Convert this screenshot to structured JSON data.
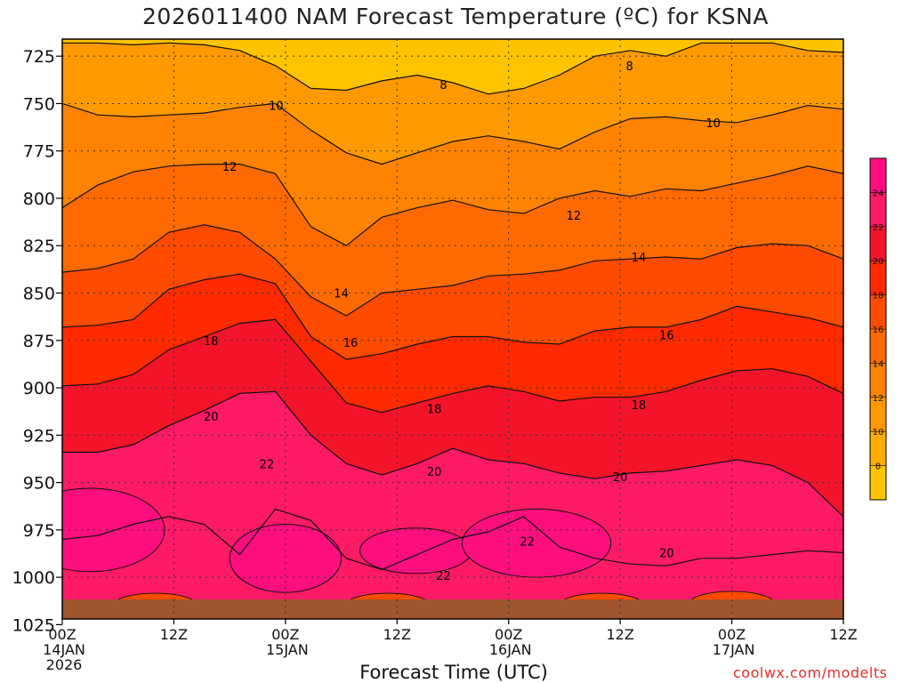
{
  "title": "2026011400 NAM Forecast Temperature (ºC) for KSNA",
  "xaxis_label": "Forecast Time (UTC)",
  "credit": "coolwx.com/modelts",
  "colors": {
    "fills": [
      "#ffc400",
      "#ffae00",
      "#ff9900",
      "#ff8200",
      "#ff6a00",
      "#ff4b00",
      "#ff2a00",
      "#f4142a",
      "#ff1a66",
      "#ff0e7e"
    ],
    "ground": "#a0552f",
    "contour": "#111111",
    "grid": "#333333"
  },
  "chart_data": {
    "type": "heatmap",
    "title": "2026011400 NAM Forecast Temperature (ºC) for KSNA",
    "xlabel": "Forecast Time (UTC)",
    "ylabel": "",
    "x_ticks": [
      {
        "hours": 0,
        "lines": [
          "00Z",
          "14JAN",
          "2026"
        ]
      },
      {
        "hours": 12,
        "lines": [
          "12Z"
        ]
      },
      {
        "hours": 24,
        "lines": [
          "00Z",
          "15JAN"
        ]
      },
      {
        "hours": 36,
        "lines": [
          "12Z"
        ]
      },
      {
        "hours": 48,
        "lines": [
          "00Z",
          "16JAN"
        ]
      },
      {
        "hours": 60,
        "lines": [
          "12Z"
        ]
      },
      {
        "hours": 72,
        "lines": [
          "00Z",
          "17JAN"
        ]
      },
      {
        "hours": 84,
        "lines": [
          "12Z"
        ]
      }
    ],
    "x_range_hours": [
      0,
      84
    ],
    "y_ticks": [
      "725",
      "750",
      "775",
      "800",
      "825",
      "850",
      "875",
      "900",
      "925",
      "950",
      "975",
      "1000",
      "1025"
    ],
    "y_range_hPa": [
      716,
      1022
    ],
    "y_inverted": true,
    "grid": true,
    "colorbar_levels": [
      "8",
      "10",
      "12",
      "14",
      "16",
      "18",
      "20",
      "22",
      "24"
    ],
    "colorbar_position": "right",
    "isotherms": [
      {
        "level": 8,
        "p": [
          718,
          718,
          719,
          718,
          719,
          722,
          730,
          742,
          743,
          738,
          735,
          739,
          745,
          742,
          735,
          725,
          722,
          725,
          718,
          718,
          718,
          722,
          723
        ]
      },
      {
        "level": 10,
        "p": [
          750,
          756,
          757,
          756,
          755,
          752,
          750,
          764,
          776,
          782,
          776,
          770,
          767,
          770,
          774,
          765,
          758,
          757,
          759,
          760,
          756,
          751,
          753
        ]
      },
      {
        "level": 12,
        "p": [
          805,
          793,
          786,
          783,
          782,
          782,
          787,
          815,
          825,
          810,
          805,
          801,
          806,
          808,
          800,
          796,
          799,
          795,
          796,
          792,
          788,
          783,
          787
        ]
      },
      {
        "level": 14,
        "p": [
          839,
          837,
          832,
          818,
          814,
          818,
          832,
          852,
          862,
          850,
          848,
          846,
          841,
          840,
          838,
          833,
          832,
          831,
          832,
          826,
          824,
          825,
          832
        ]
      },
      {
        "level": 16,
        "p": [
          868,
          867,
          864,
          848,
          843,
          840,
          845,
          873,
          885,
          882,
          877,
          873,
          873,
          876,
          877,
          870,
          868,
          868,
          864,
          857,
          860,
          863,
          868
        ]
      },
      {
        "level": 18,
        "p": [
          899,
          898,
          893,
          880,
          873,
          866,
          864,
          886,
          908,
          913,
          908,
          903,
          899,
          902,
          907,
          905,
          905,
          902,
          896,
          891,
          890,
          894,
          903
        ]
      },
      {
        "level": 20,
        "p": [
          934,
          934,
          930,
          920,
          912,
          903,
          902,
          925,
          940,
          946,
          940,
          932,
          938,
          940,
          945,
          948,
          945,
          944,
          941,
          938,
          941,
          950,
          968
        ]
      },
      {
        "level": 22,
        "p": [
          980,
          978,
          972,
          968,
          972,
          988,
          964,
          970,
          990,
          996,
          988,
          980,
          976,
          968,
          984,
          990,
          993,
          994,
          990,
          990,
          988,
          986,
          987
        ]
      }
    ],
    "annotations": [
      {
        "text": "8",
        "hours": 41,
        "p": 740
      },
      {
        "text": "8",
        "hours": 61,
        "p": 730
      },
      {
        "text": "10",
        "hours": 23,
        "p": 751
      },
      {
        "text": "10",
        "hours": 70,
        "p": 760
      },
      {
        "text": "12",
        "hours": 18,
        "p": 783
      },
      {
        "text": "12",
        "hours": 55,
        "p": 809
      },
      {
        "text": "14",
        "hours": 30,
        "p": 850
      },
      {
        "text": "14",
        "hours": 62,
        "p": 831
      },
      {
        "text": "16",
        "hours": 31,
        "p": 876
      },
      {
        "text": "16",
        "hours": 65,
        "p": 872
      },
      {
        "text": "18",
        "hours": 16,
        "p": 875
      },
      {
        "text": "18",
        "hours": 40,
        "p": 911
      },
      {
        "text": "18",
        "hours": 62,
        "p": 909
      },
      {
        "text": "20",
        "hours": 16,
        "p": 915
      },
      {
        "text": "20",
        "hours": 40,
        "p": 944
      },
      {
        "text": "20",
        "hours": 60,
        "p": 947
      },
      {
        "text": "20",
        "hours": 65,
        "p": 987
      },
      {
        "text": "22",
        "hours": 22,
        "p": 940
      },
      {
        "text": "22",
        "hours": 50,
        "p": 981
      },
      {
        "text": "22",
        "hours": 41,
        "p": 999
      }
    ]
  }
}
